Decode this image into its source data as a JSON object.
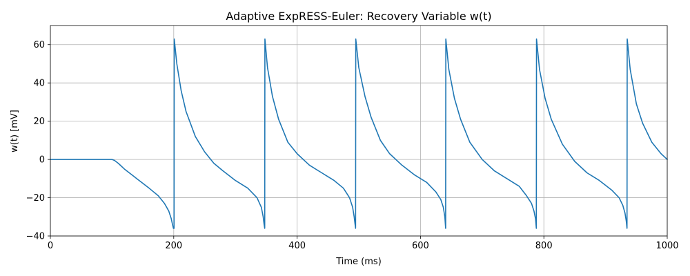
{
  "chart_data": {
    "type": "line",
    "title": "Adaptive ExpRESS-Euler: Recovery Variable w(t)",
    "xlabel": "Time (ms)",
    "ylabel": "w(t) [mV]",
    "xlim": [
      0,
      1000
    ],
    "ylim": [
      -40,
      70
    ],
    "xticks": [
      0,
      200,
      400,
      600,
      800,
      1000
    ],
    "yticks": [
      -40,
      -20,
      0,
      20,
      40,
      60
    ],
    "xtick_labels": [
      "0",
      "200",
      "400",
      "600",
      "800",
      "1000"
    ],
    "ytick_labels": [
      "−40",
      "−20",
      "0",
      "20",
      "40",
      "60"
    ],
    "grid": true,
    "legend": "none",
    "series": [
      {
        "color": "#1f77b4",
        "x": [
          0,
          100,
          104,
          110,
          120,
          140,
          160,
          175,
          185,
          192,
          196,
          198,
          199.5,
          200.5,
          200.8,
          205,
          212,
          220,
          235,
          250,
          265,
          280,
          300,
          320,
          335,
          342,
          345,
          346.5,
          347.5,
          347.8,
          352,
          360,
          370,
          385,
          400,
          420,
          440,
          460,
          475,
          485,
          490,
          492.5,
          494,
          494.8,
          495.1,
          500,
          510,
          520,
          535,
          550,
          570,
          590,
          610,
          625,
          633,
          637,
          639.5,
          640.8,
          641.1,
          646,
          655,
          665,
          680,
          700,
          720,
          740,
          760,
          772,
          780,
          784,
          786.5,
          787.8,
          788.1,
          793,
          802,
          812,
          830,
          850,
          870,
          890,
          910,
          922,
          928,
          931.5,
          933.5,
          934.8,
          935.1,
          940,
          950,
          960,
          975,
          990,
          1000
        ],
        "y": [
          0,
          0,
          -0.5,
          -2,
          -5,
          -10,
          -15,
          -19,
          -23,
          -27,
          -31,
          -34,
          -36,
          -36,
          63,
          50,
          36,
          25,
          12,
          4,
          -2,
          -6,
          -11,
          -15,
          -20,
          -25,
          -30,
          -34,
          -36,
          63,
          48,
          33,
          21,
          9,
          3,
          -3,
          -7,
          -11,
          -15,
          -20,
          -25,
          -30,
          -34,
          -36,
          63,
          48,
          33,
          22,
          10,
          3,
          -3,
          -8,
          -12,
          -17,
          -21,
          -25,
          -30,
          -36,
          63,
          47,
          32,
          21,
          9,
          0,
          -6,
          -10,
          -14,
          -19,
          -23,
          -27,
          -31,
          -36,
          63,
          47,
          32,
          21,
          8,
          -1,
          -7,
          -11,
          -16,
          -20,
          -24,
          -28,
          -32,
          -36,
          63,
          47,
          29,
          19,
          9,
          3,
          0
        ]
      }
    ]
  }
}
